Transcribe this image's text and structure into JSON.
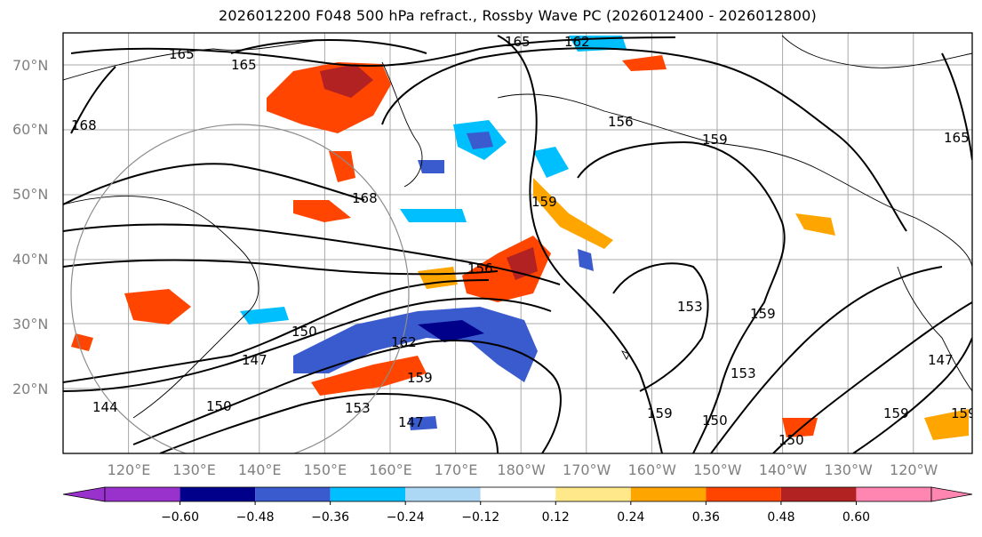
{
  "title": "2026012200 F048 500 hPa refract., Rossby Wave PC (2026012400 - 2026012800)",
  "lat_labels": [
    "70°N",
    "60°N",
    "50°N",
    "40°N",
    "30°N",
    "20°N"
  ],
  "lon_labels": [
    "120°E",
    "130°E",
    "140°E",
    "150°E",
    "160°E",
    "170°E",
    "180°W",
    "170°W",
    "160°W",
    "150°W",
    "140°W",
    "130°W",
    "120°W"
  ],
  "contour_labels": [
    "165",
    "165",
    "165",
    "162",
    "168",
    "168",
    "156",
    "159",
    "156",
    "159",
    "159",
    "153",
    "150",
    "147",
    "144",
    "150",
    "162",
    "159",
    "153",
    "147",
    "150",
    "159",
    "153",
    "150",
    "159",
    "147",
    "159",
    "165"
  ],
  "colorbar": {
    "colors": [
      "#9932cc",
      "#00008b",
      "#3a5bcd",
      "#00bfff",
      "#add8f5",
      "#ffffff",
      "#ffe88a",
      "#ffa500",
      "#ff4500",
      "#b22222",
      "#ff86b0"
    ],
    "ticks": [
      "−0.60",
      "−0.48",
      "−0.36",
      "−0.24",
      "−0.12",
      "0.12",
      "0.24",
      "0.36",
      "0.48",
      "0.60"
    ]
  }
}
